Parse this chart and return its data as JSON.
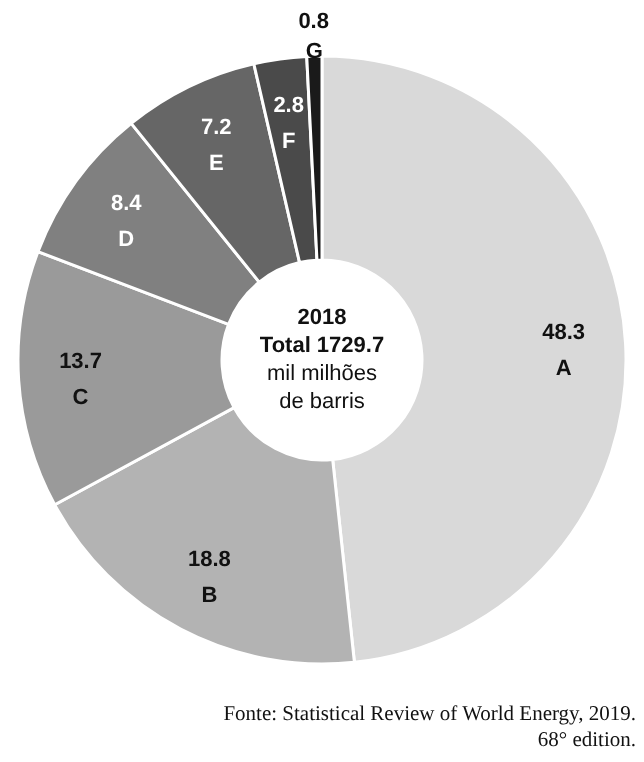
{
  "chart_data": {
    "type": "donut",
    "categories": [
      "A",
      "B",
      "C",
      "D",
      "E",
      "F",
      "G"
    ],
    "values": [
      48.3,
      18.8,
      13.7,
      8.4,
      7.2,
      2.8,
      0.8
    ],
    "colors": [
      "#d9d9d9",
      "#b3b3b3",
      "#9a9a9a",
      "#808080",
      "#666666",
      "#4a4a4a",
      "#1a1a1a"
    ],
    "data_labels": true,
    "annotations": [
      "2018",
      "Total 1729.7",
      "mil milhões",
      "de barris",
      "Fonte: Statistical Review of World Energy, 2019.",
      "68° edition."
    ]
  }
}
